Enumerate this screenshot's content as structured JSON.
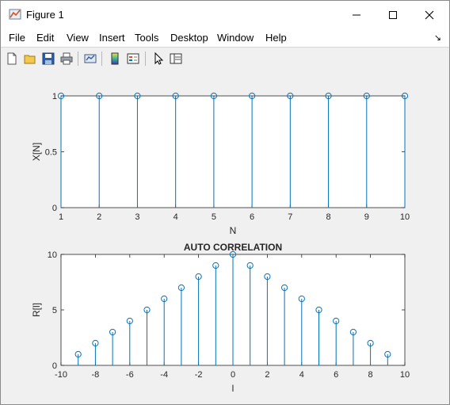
{
  "window": {
    "title": "Figure 1",
    "minimize_label": "─",
    "maximize_label": "☐",
    "close_label": "✕"
  },
  "menu": {
    "items": [
      "File",
      "Edit",
      "View",
      "Insert",
      "Tools",
      "Desktop",
      "Window",
      "Help"
    ],
    "dock_arrow": "↘"
  },
  "toolbar": {
    "icons": [
      "new-figure-icon",
      "open-file-icon",
      "save-icon",
      "print-icon",
      "link-plot-icon",
      "insert-colorbar-icon",
      "insert-legend-icon",
      "edit-plot-icon",
      "property-editor-icon"
    ]
  },
  "colors": {
    "stem": "#0072BD",
    "axes": "#262626"
  },
  "chart_data": [
    {
      "type": "stem",
      "title": "",
      "xlabel": "N",
      "ylabel": "X[N]",
      "x": [
        1,
        2,
        3,
        4,
        5,
        6,
        7,
        8,
        9,
        10
      ],
      "y": [
        1,
        1,
        1,
        1,
        1,
        1,
        1,
        1,
        1,
        1
      ],
      "xlim": [
        1,
        10
      ],
      "ylim": [
        0,
        1
      ],
      "xticks": [
        "1",
        "2",
        "3",
        "4",
        "5",
        "6",
        "7",
        "8",
        "9",
        "10"
      ],
      "yticks": [
        "0",
        "0.5",
        "1"
      ],
      "grid": false
    },
    {
      "type": "stem",
      "title": "AUTO CORRELATION",
      "xlabel": "l",
      "ylabel": "R[l]",
      "x": [
        -9,
        -8,
        -7,
        -6,
        -5,
        -4,
        -3,
        -2,
        -1,
        0,
        1,
        2,
        3,
        4,
        5,
        6,
        7,
        8,
        9
      ],
      "y": [
        1,
        2,
        3,
        4,
        5,
        6,
        7,
        8,
        9,
        10,
        9,
        8,
        7,
        6,
        5,
        4,
        3,
        2,
        1
      ],
      "xlim": [
        -10,
        10
      ],
      "ylim": [
        0,
        10
      ],
      "xticks": [
        "-10",
        "-8",
        "-6",
        "-4",
        "-2",
        "0",
        "2",
        "4",
        "6",
        "8",
        "10"
      ],
      "yticks": [
        "0",
        "5",
        "10"
      ],
      "grid": false
    }
  ]
}
